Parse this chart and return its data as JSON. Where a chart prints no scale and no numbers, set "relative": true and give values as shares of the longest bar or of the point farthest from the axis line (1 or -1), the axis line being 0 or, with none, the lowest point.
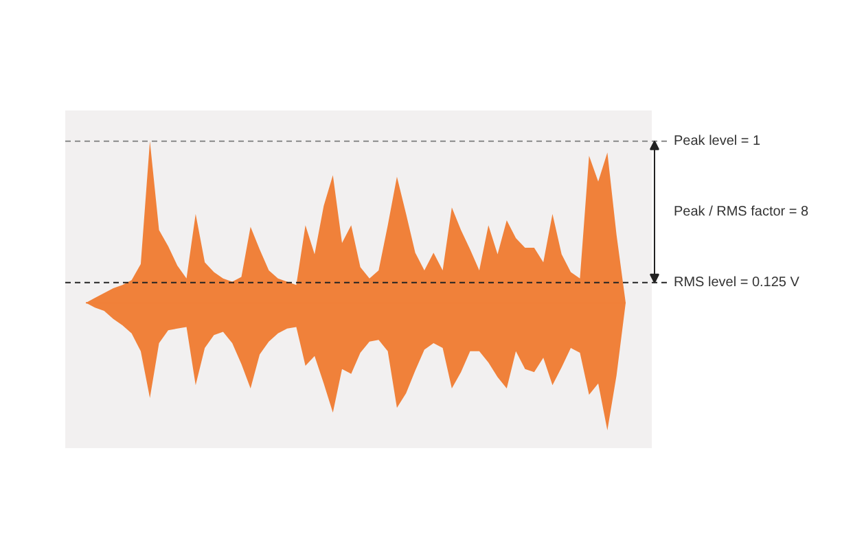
{
  "chart_data": {
    "type": "area",
    "relative": true,
    "grid": false,
    "categories": [
      null,
      null,
      null,
      null,
      null,
      null,
      null,
      null,
      null,
      null,
      null,
      null,
      null,
      null,
      null,
      null,
      null,
      null,
      null,
      null,
      null,
      null,
      null,
      null,
      null,
      null,
      null,
      null,
      null,
      null,
      null,
      null,
      null,
      null,
      null,
      null,
      null,
      null,
      null,
      null,
      null,
      null,
      null,
      null,
      null,
      null,
      null,
      null,
      null,
      null,
      null,
      null,
      null,
      null,
      null,
      null,
      null,
      null,
      null,
      null
    ],
    "series": [
      {
        "color": "#f0813a",
        "values": [
          0,
          0.03,
          0.06,
          0.09,
          0.11,
          0.14,
          0.24,
          1.0,
          0.45,
          0.35,
          0.23,
          0.15,
          0.55,
          0.25,
          0.19,
          0.15,
          0.13,
          0.16,
          0.47,
          0.33,
          0.2,
          0.15,
          0.13,
          0.11,
          0.48,
          0.3,
          0.6,
          0.79,
          0.37,
          0.48,
          0.22,
          0.15,
          0.2,
          0.48,
          0.78,
          0.55,
          0.31,
          0.2,
          0.31,
          0.2,
          0.59,
          0.45,
          0.33,
          0.2,
          0.48,
          0.3,
          0.51,
          0.4,
          0.34,
          0.34,
          0.25,
          0.55,
          0.3,
          0.19,
          0.15,
          0.91,
          0.75,
          0.93,
          0.42,
          0
        ]
      },
      {
        "color": "#f0813a",
        "values": [
          0,
          -0.03,
          -0.05,
          -0.1,
          -0.14,
          -0.19,
          -0.3,
          -0.59,
          -0.25,
          -0.17,
          -0.16,
          -0.15,
          -0.51,
          -0.28,
          -0.2,
          -0.18,
          -0.25,
          -0.38,
          -0.53,
          -0.32,
          -0.24,
          -0.19,
          -0.16,
          -0.15,
          -0.39,
          -0.33,
          -0.5,
          -0.68,
          -0.41,
          -0.44,
          -0.31,
          -0.24,
          -0.23,
          -0.3,
          -0.65,
          -0.56,
          -0.42,
          -0.29,
          -0.25,
          -0.28,
          -0.53,
          -0.43,
          -0.3,
          -0.3,
          -0.37,
          -0.46,
          -0.53,
          -0.3,
          -0.41,
          -0.43,
          -0.34,
          -0.51,
          -0.4,
          -0.28,
          -0.31,
          -0.57,
          -0.5,
          -0.79,
          -0.45,
          0
        ]
      }
    ],
    "ref_lines": [
      {
        "axis": "y",
        "value": 1,
        "label": "Peak level = 1",
        "color": "#888888",
        "line_style": "dashed"
      },
      {
        "axis": "y",
        "value": 0.125,
        "label": "RMS level = 0.125 V",
        "color": "#222222",
        "line_style": "dashed"
      }
    ],
    "annotations": [
      "Peak / RMS factor = 8"
    ]
  }
}
